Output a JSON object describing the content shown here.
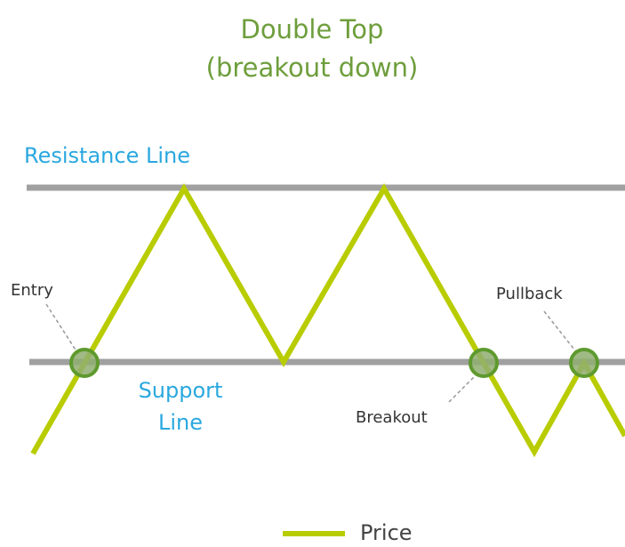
{
  "title": {
    "line1": "Double Top",
    "line2": "(breakout down)"
  },
  "labels": {
    "resistance": "Resistance Line",
    "support_line1": "Support",
    "support_line2": "Line",
    "entry": "Entry",
    "pullback": "Pullback",
    "breakout": "Breakout"
  },
  "legend": {
    "price": "Price"
  }
}
